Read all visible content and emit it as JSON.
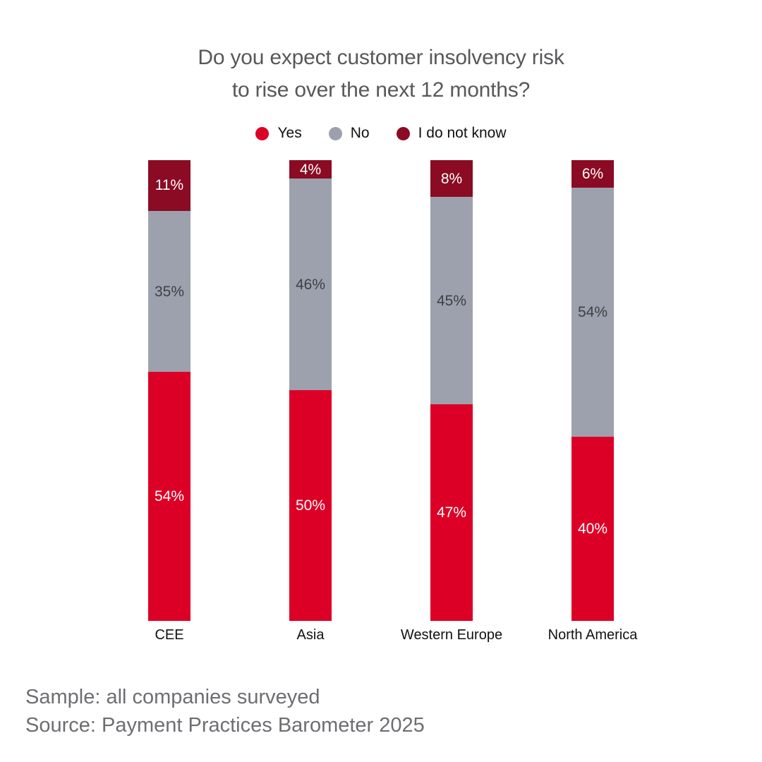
{
  "title": {
    "line1": "Do you expect customer insolvency risk",
    "line2": "to rise over the next 12 months?"
  },
  "legend": [
    {
      "label": "Yes",
      "color": "#DC0026"
    },
    {
      "label": "No",
      "color": "#9CA1AD"
    },
    {
      "label": "I do not know",
      "color": "#8A0B23"
    }
  ],
  "chart_data": {
    "type": "bar",
    "stacked": true,
    "title": "Do you expect customer insolvency risk to rise over the next 12 months?",
    "categories": [
      "CEE",
      "Asia",
      "Western Europe",
      "North America"
    ],
    "series": [
      {
        "name": "Yes",
        "color": "#DC0026",
        "label_color": "#FFFFFF",
        "values": [
          54,
          50,
          47,
          40
        ]
      },
      {
        "name": "No",
        "color": "#9CA1AD",
        "label_color": "#3E4045",
        "values": [
          35,
          46,
          45,
          54
        ]
      },
      {
        "name": "I do not know",
        "color": "#8A0B23",
        "label_color": "#FFFFFF",
        "values": [
          11,
          4,
          8,
          6
        ]
      }
    ],
    "stack_order_top_to_bottom": [
      "I do not know",
      "No",
      "Yes"
    ],
    "value_suffix": "%",
    "ylim": [
      0,
      100
    ],
    "grid": false,
    "legend_position": "top-center",
    "xlabel": "",
    "ylabel": ""
  },
  "footer": {
    "sample": "Sample: all companies surveyed",
    "source": "Source: Payment Practices Barometer 2025"
  }
}
